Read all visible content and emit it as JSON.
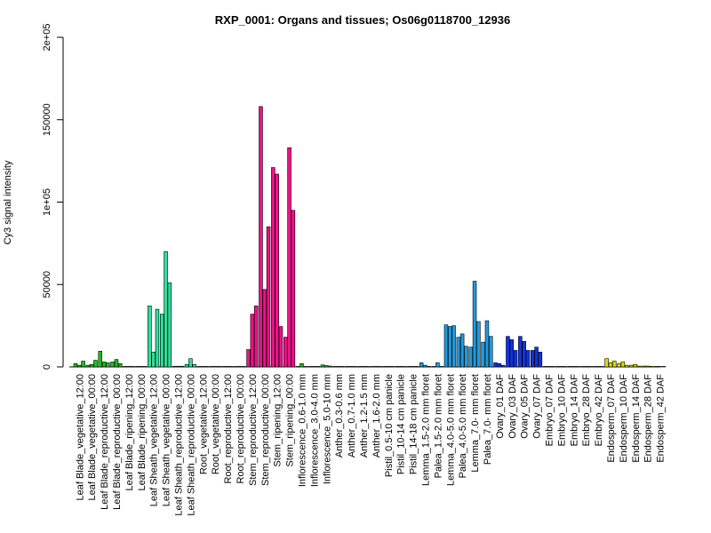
{
  "chart_data": {
    "type": "bar",
    "title": "RXP_0001: Organs and tissues; Os06g0118700_12936",
    "ylabel": "Cy3 signal intensity",
    "ylim": [
      0,
      200000
    ],
    "yticks": [
      {
        "value": 0,
        "label": "0"
      },
      {
        "value": 50000,
        "label": "50000"
      },
      {
        "value": 100000,
        "label": "1e+05"
      },
      {
        "value": 150000,
        "label": "150000"
      },
      {
        "value": 200000,
        "label": "2e+05"
      }
    ],
    "groups": [
      {
        "label": "Leaf Blade_vegetative_12:00",
        "color": "#22bb22",
        "values": [
          2000,
          1000,
          3500
        ]
      },
      {
        "label": "Leaf Blade_vegetative_00:00",
        "color": "#22bb22",
        "values": [
          1000,
          1500,
          4000
        ]
      },
      {
        "label": "Leaf Blade_reproductive_12:00",
        "color": "#22bb22",
        "values": [
          9500,
          3000,
          2500
        ]
      },
      {
        "label": "Leaf Blade_reproductive_00:00",
        "color": "#22bb22",
        "values": [
          3000,
          4500,
          2000
        ]
      },
      {
        "label": "Leaf Blade_ripening_12:00",
        "color": "#22bb22",
        "values": [
          300,
          300,
          300
        ]
      },
      {
        "label": "Leaf Blade_ripening_00:00",
        "color": "#22bb22",
        "values": [
          300,
          300,
          300
        ]
      },
      {
        "label": "Leaf Sheath_vegetative_12:00",
        "color": "#33dd99",
        "values": [
          37000,
          9000,
          35000
        ]
      },
      {
        "label": "Leaf Sheath_vegetative_00:00",
        "color": "#33dd99",
        "values": [
          32000,
          70000,
          51000
        ]
      },
      {
        "label": "Leaf Sheath_reproductive_12:00",
        "color": "#33dd99",
        "values": [
          400,
          400,
          400
        ]
      },
      {
        "label": "Leaf Sheath_reproductive_00:00",
        "color": "#33dd99",
        "values": [
          1500,
          5000,
          1500
        ]
      },
      {
        "label": "Root_vegetative_12:00",
        "color": "#22aacc",
        "values": [
          300,
          300,
          300
        ]
      },
      {
        "label": "Root_vegetative_00:00",
        "color": "#22aacc",
        "values": [
          300,
          300,
          300
        ]
      },
      {
        "label": "Root_reproductive_12:00",
        "color": "#22aacc",
        "values": [
          300,
          300,
          300
        ]
      },
      {
        "label": "Root_reproductive_00:00",
        "color": "#22aacc",
        "values": [
          300,
          300,
          300
        ]
      },
      {
        "label": "Stem_reproductive_12:00",
        "color": "#ee1188",
        "values": [
          10500,
          32000,
          37000
        ]
      },
      {
        "label": "Stem_reproductive_00:00",
        "color": "#ee1188",
        "values": [
          158000,
          47000,
          85000
        ]
      },
      {
        "label": "Stem_ripening_12:00",
        "color": "#ee1188",
        "values": [
          121000,
          117000,
          24500
        ]
      },
      {
        "label": "Stem_ripening_00:00",
        "color": "#ee1188",
        "values": [
          18000,
          133000,
          95000
        ]
      },
      {
        "label": "Inflorescence_0.6-1.0 mm",
        "color": "#22bb22",
        "values": [
          300,
          2000,
          300
        ]
      },
      {
        "label": "Inflorescence_3.0-4.0 mm",
        "color": "#22bb22",
        "values": [
          300,
          300,
          300
        ]
      },
      {
        "label": "Inflorescence_5.0-10 mm",
        "color": "#22bb22",
        "values": [
          1200,
          800,
          500
        ]
      },
      {
        "label": "Anther_0.3-0.6 mm",
        "color": "#9933cc",
        "values": [
          300,
          300,
          300
        ]
      },
      {
        "label": "Anther_0.7-1.0 mm",
        "color": "#9933cc",
        "values": [
          300,
          300,
          300
        ]
      },
      {
        "label": "Anther_1.2-1.5 mm",
        "color": "#9933cc",
        "values": [
          300,
          300,
          300
        ]
      },
      {
        "label": "Anther_1.6-2.0 mm",
        "color": "#9933cc",
        "values": [
          300,
          300,
          300
        ]
      },
      {
        "label": "Pistil_0.5-10 cm panicle",
        "color": "#3366ff",
        "values": [
          300,
          300,
          300
        ]
      },
      {
        "label": "Pistil_10-14 cm panicle",
        "color": "#3366ff",
        "values": [
          300,
          300,
          300
        ]
      },
      {
        "label": "Pistil_14-18 cm panicle",
        "color": "#3366ff",
        "values": [
          300,
          300,
          300
        ]
      },
      {
        "label": "Lemma_1.5-2.0 mm floret",
        "color": "#2299dd",
        "values": [
          2500,
          1000,
          300
        ]
      },
      {
        "label": "Palea_1.5-2.0 mm floret",
        "color": "#2299dd",
        "values": [
          300,
          2500,
          300
        ]
      },
      {
        "label": "Lemma_4.0-5.0 mm floret",
        "color": "#2299dd",
        "values": [
          25500,
          24500,
          25000
        ]
      },
      {
        "label": "Palea_4.0-5.0 mm floret",
        "color": "#2299dd",
        "values": [
          18000,
          20000,
          12500
        ]
      },
      {
        "label": "Lemma_7.0- mm floret",
        "color": "#2299dd",
        "values": [
          12000,
          52000,
          27500
        ]
      },
      {
        "label": "Palea_7.0- mm floret",
        "color": "#2299dd",
        "values": [
          15000,
          28000,
          18500
        ]
      },
      {
        "label": "Ovary_01 DAF",
        "color": "#1133dd",
        "values": [
          2500,
          2000,
          1000
        ]
      },
      {
        "label": "Ovary_03 DAF",
        "color": "#1133dd",
        "values": [
          18500,
          16500,
          10000
        ]
      },
      {
        "label": "Ovary_05 DAF",
        "color": "#1133dd",
        "values": [
          18500,
          15500,
          10000
        ]
      },
      {
        "label": "Ovary_07 DAF",
        "color": "#1133dd",
        "values": [
          10000,
          12000,
          9000
        ]
      },
      {
        "label": "Embryo_07 DAF",
        "color": "#dddd00",
        "values": [
          300,
          300,
          300
        ]
      },
      {
        "label": "Embryo_10 DAF",
        "color": "#dddd00",
        "values": [
          300,
          300,
          300
        ]
      },
      {
        "label": "Embryo_14 DAF",
        "color": "#dddd00",
        "values": [
          300,
          300,
          300
        ]
      },
      {
        "label": "Embryo_28 DAF",
        "color": "#dddd00",
        "values": [
          300,
          300,
          300
        ]
      },
      {
        "label": "Embryo_42 DAF",
        "color": "#dddd00",
        "values": [
          300,
          300,
          300
        ]
      },
      {
        "label": "Endosperm_07 DAF",
        "color": "#dddd00",
        "values": [
          5000,
          2500,
          3500
        ]
      },
      {
        "label": "Endosperm_10 DAF",
        "color": "#dddd00",
        "values": [
          2000,
          3000,
          1000
        ]
      },
      {
        "label": "Endosperm_14 DAF",
        "color": "#dddd00",
        "values": [
          1000,
          1500,
          500
        ]
      },
      {
        "label": "Endosperm_28 DAF",
        "color": "#dddd00",
        "values": [
          500,
          500,
          300
        ]
      },
      {
        "label": "Endosperm_42 DAF",
        "color": "#dddd00",
        "values": [
          300,
          300,
          300
        ]
      }
    ]
  }
}
